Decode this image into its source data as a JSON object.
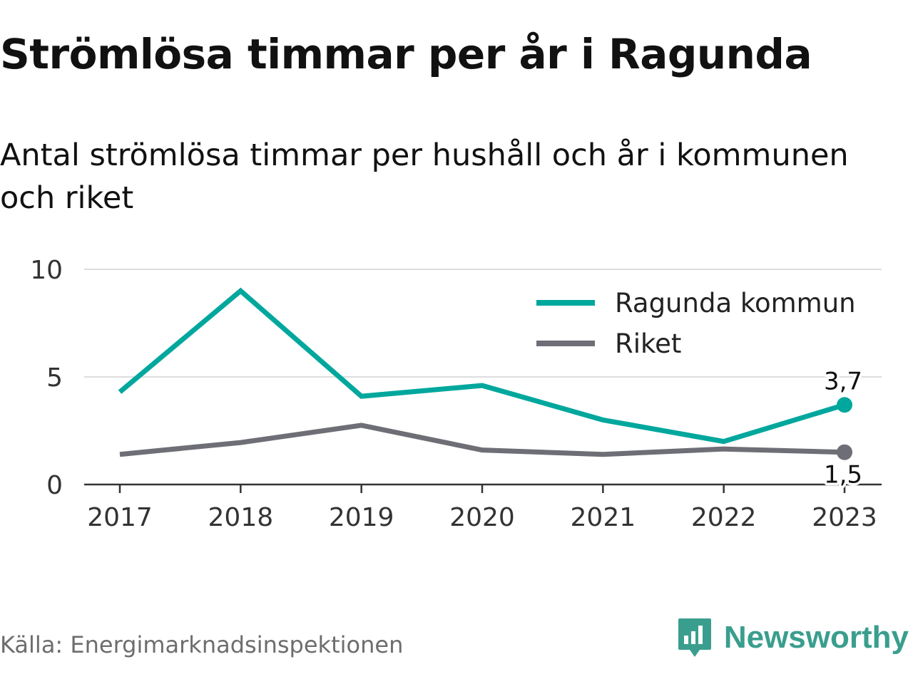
{
  "title": "Strömlösa timmar per år i Ragunda",
  "subtitle": "Antal strömlösa timmar per hushåll och år i kommunen och riket",
  "source": "Källa: Energimarknadsinspektionen",
  "brand": {
    "name": "Newsworthy",
    "icon": "newsworthy-logo-icon",
    "color": "#3a9e8e"
  },
  "chart_data": {
    "type": "line",
    "categories": [
      "2017",
      "2018",
      "2019",
      "2020",
      "2021",
      "2022",
      "2023"
    ],
    "y_ticks": [
      0,
      5,
      10
    ],
    "ylim": [
      0,
      10
    ],
    "grid": true,
    "legend_position": "top-right",
    "xlabel": "",
    "ylabel": "",
    "series": [
      {
        "name": "Ragunda kommun",
        "color": "#00a79d",
        "values": [
          4.3,
          9.0,
          4.1,
          4.6,
          3.0,
          2.0,
          3.7
        ],
        "end_label": "3,7"
      },
      {
        "name": "Riket",
        "color": "#6e6e76",
        "values": [
          1.4,
          1.95,
          2.75,
          1.6,
          1.4,
          1.65,
          1.5
        ],
        "end_label": "1,5"
      }
    ]
  }
}
